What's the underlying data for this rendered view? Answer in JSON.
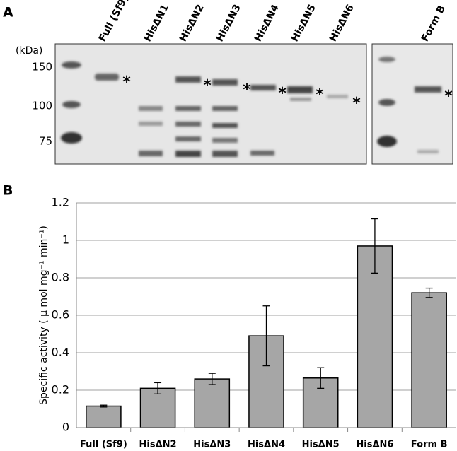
{
  "panel_labels": [
    "A",
    "B"
  ],
  "gel": {
    "kda_label": "(kDa)",
    "markers": [
      150,
      100,
      75
    ],
    "lanes": [
      "Full (Sf9)",
      "HisΔN1",
      "HisΔN2",
      "HisΔN3",
      "HisΔN4",
      "HisΔN5",
      "HisΔN6",
      "Form B"
    ],
    "asterisk": "*"
  },
  "chart_data": {
    "type": "bar",
    "ylabel": "Specific activity ( μ mol mg⁻¹ min⁻¹)",
    "categories": [
      "Full (Sf9)",
      "HisΔN2",
      "HisΔN3",
      "HisΔN4",
      "HisΔN5",
      "HisΔN6",
      "Form B"
    ],
    "values": [
      0.115,
      0.21,
      0.26,
      0.49,
      0.265,
      0.97,
      0.72
    ],
    "errors": [
      0.005,
      0.03,
      0.03,
      0.16,
      0.055,
      0.145,
      0.025
    ],
    "color": "#a6a6a6",
    "ylim": [
      0,
      1.2
    ],
    "yticks": [
      0,
      0.2,
      0.4,
      0.6,
      0.8,
      1,
      1.2
    ],
    "grid": true
  }
}
